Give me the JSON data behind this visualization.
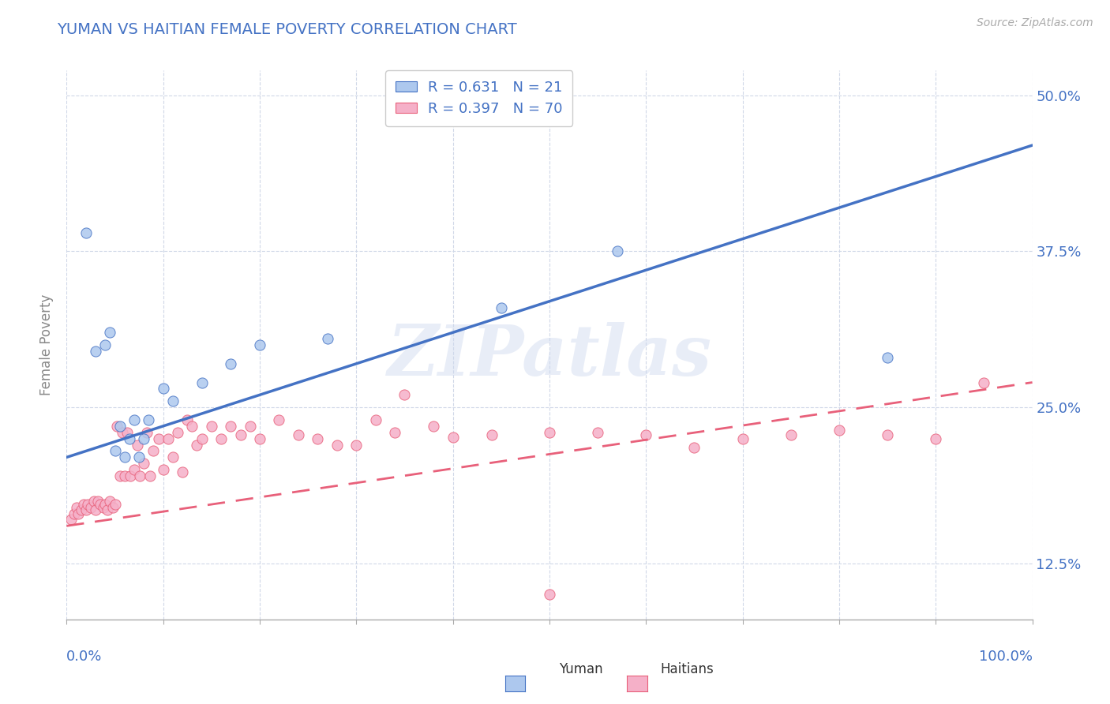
{
  "title": "YUMAN VS HAITIAN FEMALE POVERTY CORRELATION CHART",
  "source_text": "Source: ZipAtlas.com",
  "ylabel": "Female Poverty",
  "yuman_R": 0.631,
  "yuman_N": 21,
  "haitian_R": 0.397,
  "haitian_N": 70,
  "yuman_color": "#adc8ee",
  "haitian_color": "#f5b0c8",
  "yuman_line_color": "#4472c4",
  "haitian_line_color": "#e8607a",
  "title_color": "#4472c4",
  "legend_R_color": "#4472c4",
  "axis_label_color": "#4472c4",
  "background_color": "#ffffff",
  "grid_color": "#d0d8e8",
  "yuman_scatter_x": [
    0.02,
    0.03,
    0.04,
    0.045,
    0.05,
    0.055,
    0.06,
    0.065,
    0.07,
    0.075,
    0.08,
    0.085,
    0.1,
    0.11,
    0.14,
    0.17,
    0.2,
    0.27,
    0.45,
    0.57,
    0.85
  ],
  "yuman_scatter_y": [
    0.39,
    0.295,
    0.3,
    0.31,
    0.215,
    0.235,
    0.21,
    0.225,
    0.24,
    0.21,
    0.225,
    0.24,
    0.265,
    0.255,
    0.27,
    0.285,
    0.3,
    0.305,
    0.33,
    0.375,
    0.29
  ],
  "haitian_scatter_x": [
    0.005,
    0.008,
    0.01,
    0.012,
    0.015,
    0.018,
    0.02,
    0.022,
    0.025,
    0.028,
    0.03,
    0.032,
    0.035,
    0.038,
    0.04,
    0.042,
    0.045,
    0.048,
    0.05,
    0.052,
    0.055,
    0.058,
    0.06,
    0.063,
    0.066,
    0.07,
    0.073,
    0.076,
    0.08,
    0.083,
    0.086,
    0.09,
    0.095,
    0.1,
    0.105,
    0.11,
    0.115,
    0.12,
    0.125,
    0.13,
    0.135,
    0.14,
    0.15,
    0.16,
    0.17,
    0.18,
    0.19,
    0.2,
    0.22,
    0.24,
    0.26,
    0.28,
    0.3,
    0.32,
    0.34,
    0.38,
    0.4,
    0.44,
    0.5,
    0.55,
    0.6,
    0.65,
    0.7,
    0.75,
    0.8,
    0.85,
    0.9,
    0.95,
    0.5,
    0.35
  ],
  "haitian_scatter_y": [
    0.16,
    0.165,
    0.17,
    0.165,
    0.168,
    0.172,
    0.168,
    0.172,
    0.17,
    0.175,
    0.168,
    0.175,
    0.172,
    0.17,
    0.172,
    0.168,
    0.175,
    0.17,
    0.172,
    0.235,
    0.195,
    0.23,
    0.195,
    0.23,
    0.195,
    0.2,
    0.22,
    0.195,
    0.205,
    0.23,
    0.195,
    0.215,
    0.225,
    0.2,
    0.225,
    0.21,
    0.23,
    0.198,
    0.24,
    0.235,
    0.22,
    0.225,
    0.235,
    0.225,
    0.235,
    0.228,
    0.235,
    0.225,
    0.24,
    0.228,
    0.225,
    0.22,
    0.22,
    0.24,
    0.23,
    0.235,
    0.226,
    0.228,
    0.23,
    0.23,
    0.228,
    0.218,
    0.225,
    0.228,
    0.232,
    0.228,
    0.225,
    0.27,
    0.1,
    0.26
  ],
  "xlim": [
    0.0,
    1.0
  ],
  "ylim": [
    0.08,
    0.52
  ],
  "ytick_positions": [
    0.125,
    0.25,
    0.375,
    0.5
  ],
  "ytick_labels": [
    "12.5%",
    "25.0%",
    "37.5%",
    "50.0%"
  ],
  "xtick_left_label": "0.0%",
  "xtick_right_label": "100.0%",
  "watermark_text": "ZIPatlas",
  "bottom_legend_yuman": "Yuman",
  "bottom_legend_haitian": "Haitians"
}
